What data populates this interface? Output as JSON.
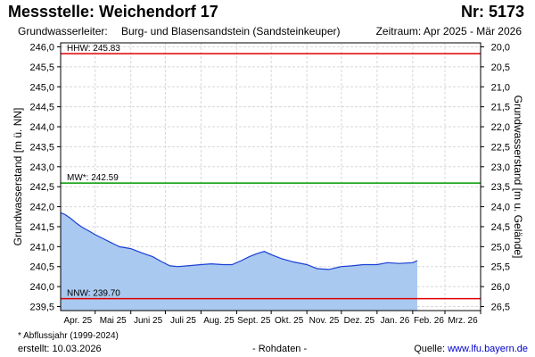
{
  "header": {
    "title": "Messstelle: Weichendorf 17",
    "nr": "Nr: 5173",
    "leiter_label": "Grundwasserleiter:",
    "leiter_value": "Burg- und Blasensandstein (Sandsteinkeuper)",
    "zeitraum": "Zeitraum: Apr 2025 - Mär 2026"
  },
  "footer": {
    "footnote": "* Abflussjahr (1999-2024)",
    "erstellt": "erstellt:  10.03.2026",
    "rohdaten": "- Rohdaten -",
    "quelle_label": "Quelle: ",
    "quelle_url": "www.lfu.bayern.de"
  },
  "chart_data": {
    "type": "area",
    "ylabel_left": "Grundwasserstand [m ü. NN]",
    "ylabel_right": "Grundwasserstand [m u. Gelände]",
    "ylim": [
      239.4,
      246.1
    ],
    "y_ticks": [
      "239,5",
      "240,0",
      "240,5",
      "241,0",
      "241,5",
      "242,0",
      "242,5",
      "243,0",
      "243,5",
      "244,0",
      "244,5",
      "245,0",
      "245,5",
      "246,0"
    ],
    "y_right_ticks": [
      "26,5",
      "26,0",
      "25,5",
      "25,0",
      "24,5",
      "24,0",
      "23,5",
      "23,0",
      "22,5",
      "22,0",
      "21,5",
      "21,0",
      "20,5",
      "20,0"
    ],
    "x_ticks": [
      "Apr. 25",
      "Mai 25",
      "Juni 25",
      "Juli 25",
      "Aug. 25",
      "Sept. 25",
      "Okt. 25",
      "Nov. 25",
      "Dez. 25",
      "Jan. 26",
      "Feb. 26",
      "Mrz. 26"
    ],
    "grid": true,
    "reference_lines": [
      {
        "label": "HHW: 245.83",
        "value": 245.83,
        "color": "#e00000"
      },
      {
        "label": "MW*: 242.59",
        "value": 242.59,
        "color": "#009900"
      },
      {
        "label": "NNW: 239.70",
        "value": 239.7,
        "color": "#e00000"
      }
    ],
    "series": [
      {
        "color": "#1a3fd6",
        "fill": "#a9c9f0",
        "x": [
          "2025-04-01",
          "2025-04-05",
          "2025-04-10",
          "2025-04-15",
          "2025-04-20",
          "2025-04-25",
          "2025-05-01",
          "2025-05-08",
          "2025-05-15",
          "2025-05-22",
          "2025-06-01",
          "2025-06-10",
          "2025-06-20",
          "2025-06-28",
          "2025-07-05",
          "2025-07-12",
          "2025-07-20",
          "2025-08-01",
          "2025-08-10",
          "2025-08-20",
          "2025-08-28",
          "2025-09-05",
          "2025-09-12",
          "2025-09-18",
          "2025-09-25",
          "2025-10-01",
          "2025-10-10",
          "2025-10-20",
          "2025-11-01",
          "2025-11-10",
          "2025-11-20",
          "2025-12-01",
          "2025-12-10",
          "2025-12-20",
          "2026-01-01",
          "2026-01-10",
          "2026-01-20",
          "2026-02-01",
          "2026-02-05"
        ],
        "values": [
          241.85,
          241.8,
          241.7,
          241.58,
          241.48,
          241.4,
          241.3,
          241.2,
          241.1,
          241.0,
          240.95,
          240.85,
          240.75,
          240.62,
          240.52,
          240.5,
          240.52,
          240.55,
          240.57,
          240.55,
          240.55,
          240.65,
          240.75,
          240.82,
          240.88,
          240.8,
          240.7,
          240.62,
          240.55,
          240.45,
          240.43,
          240.5,
          240.52,
          240.55,
          240.55,
          240.6,
          240.58,
          240.6,
          240.65
        ]
      }
    ]
  }
}
